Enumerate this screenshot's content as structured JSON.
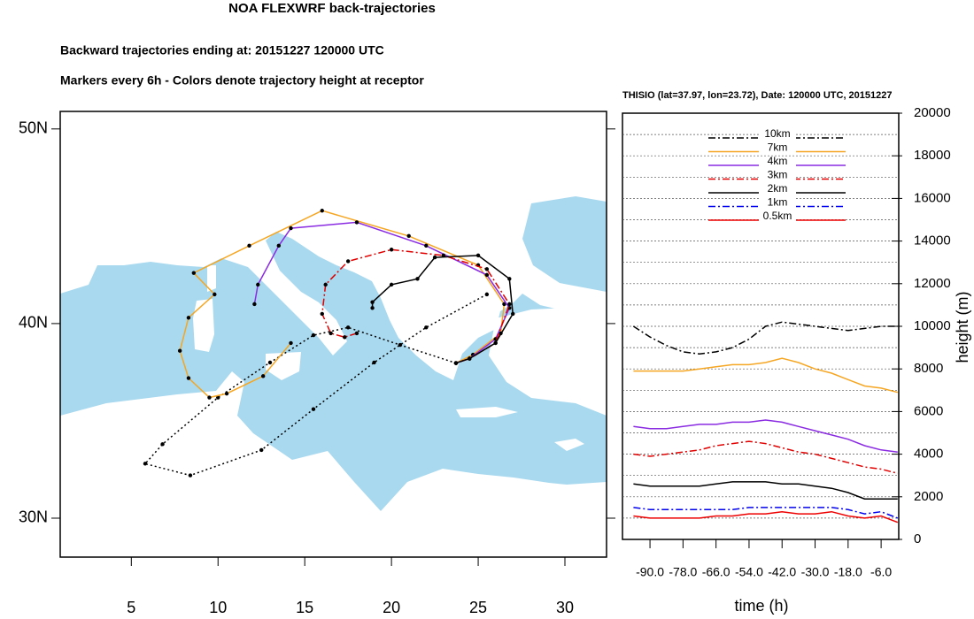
{
  "title": "NOA FLEXWRF back-trajectories",
  "subtitle": "Backward trajectories ending at: 20151227  120000 UTC",
  "note": "Markers every 6h - Colors denote trajectory height at receptor",
  "chart_data": [
    {
      "type": "trajectory-map",
      "xlim": [
        0.9,
        32.4
      ],
      "ylim": [
        28.0,
        50.9
      ],
      "xticks": [
        5,
        10,
        15,
        20,
        25,
        30
      ],
      "yticks": [
        {
          "value": 30,
          "label": "30N"
        },
        {
          "value": 40,
          "label": "40N"
        },
        {
          "value": 50,
          "label": "50N"
        }
      ],
      "series": [
        {
          "color": "#000000",
          "dash": "dotted",
          "x": [
            25.5,
            22.0,
            19.0,
            15.5,
            12.5,
            8.4,
            5.8,
            6.8,
            10.0,
            13.0,
            15.5,
            17.5,
            20.5,
            23.72
          ],
          "y": [
            41.5,
            39.8,
            38.0,
            35.6,
            33.5,
            32.2,
            32.8,
            33.8,
            36.2,
            38.0,
            39.4,
            39.8,
            38.9,
            37.97
          ]
        },
        {
          "color": "#f5a623",
          "dash": "solid",
          "x": [
            14.2,
            12.6,
            10.5,
            9.5,
            8.3,
            7.8,
            8.3,
            9.8,
            8.6,
            11.8,
            16.0,
            21.0,
            25.0,
            26.5,
            26.3,
            24.7,
            23.72
          ],
          "y": [
            39.0,
            37.3,
            36.4,
            36.2,
            37.2,
            38.6,
            40.3,
            41.5,
            42.6,
            44.0,
            45.8,
            44.5,
            43.0,
            41.0,
            39.5,
            38.4,
            37.97
          ]
        },
        {
          "color": "#8a2be2",
          "dash": "solid",
          "x": [
            12.1,
            12.3,
            13.5,
            14.2,
            18.0,
            22.0,
            25.5,
            26.8,
            26.0,
            24.5,
            23.72
          ],
          "y": [
            41.0,
            42.0,
            44.0,
            44.9,
            45.2,
            44.0,
            42.5,
            40.8,
            39.2,
            38.2,
            37.97
          ]
        },
        {
          "color": "#e00000",
          "dash": "dashdot",
          "x": [
            18.0,
            17.3,
            16.5,
            16.0,
            16.2,
            17.5,
            20.0,
            23.0,
            25.5,
            26.8,
            26.0,
            24.5,
            23.72
          ],
          "y": [
            39.5,
            39.3,
            39.5,
            40.5,
            42.0,
            43.2,
            43.8,
            43.5,
            42.8,
            41.0,
            39.0,
            38.2,
            37.97
          ]
        },
        {
          "color": "#000000",
          "dash": "solid",
          "x": [
            18.9,
            18.9,
            20.0,
            21.5,
            22.5,
            25.0,
            26.8,
            27.0,
            26.0,
            24.5,
            23.72
          ],
          "y": [
            40.8,
            41.1,
            42.0,
            42.3,
            43.4,
            43.5,
            42.3,
            40.5,
            39.0,
            38.2,
            37.97
          ]
        }
      ]
    },
    {
      "type": "line",
      "title": "THISIO (lat=37.97,  lon=23.72), Date: 120000 UTC, 20151227",
      "x_label": "time (h)",
      "y_label": "height (m)",
      "x": [
        -96,
        -90,
        -84,
        -78,
        -72,
        -66,
        -60,
        -54,
        -48,
        -42,
        -36,
        -30,
        -24,
        -18,
        -12,
        -6,
        0
      ],
      "xlim": [
        -100,
        0.4
      ],
      "ylim": [
        0,
        20000
      ],
      "xticks": [
        {
          "value": -90,
          "label": "-90.0"
        },
        {
          "value": -78,
          "label": "-78.0"
        },
        {
          "value": -66,
          "label": "-66.0"
        },
        {
          "value": -54,
          "label": "-54.0"
        },
        {
          "value": -42,
          "label": "-42.0"
        },
        {
          "value": -30,
          "label": "-30.0"
        },
        {
          "value": -18,
          "label": "-18.0"
        },
        {
          "value": -6,
          "label": "-6.0"
        }
      ],
      "yticks": [
        0,
        2000,
        4000,
        6000,
        8000,
        10000,
        12000,
        14000,
        16000,
        18000,
        20000
      ],
      "minor_yticks": [
        1000,
        3000,
        5000,
        7000,
        9000,
        11000,
        13000,
        15000,
        17000,
        19000
      ],
      "grid": true,
      "series": [
        {
          "name": "10km",
          "color": "#000000",
          "dash": "dashdot",
          "values": [
            10000,
            9500,
            9100,
            8800,
            8700,
            8800,
            9000,
            9400,
            10000,
            10200,
            10100,
            10000,
            9900,
            9800,
            9900,
            10000,
            10000
          ]
        },
        {
          "name": "7km",
          "color": "#f5a623",
          "dash": "solid",
          "values": [
            7900,
            7900,
            7900,
            7900,
            8000,
            8100,
            8200,
            8200,
            8300,
            8500,
            8300,
            8000,
            7800,
            7500,
            7200,
            7100,
            6900
          ]
        },
        {
          "name": "4km",
          "color": "#8a2be2",
          "dash": "solid",
          "values": [
            5300,
            5200,
            5200,
            5300,
            5400,
            5400,
            5500,
            5500,
            5600,
            5500,
            5300,
            5100,
            4900,
            4700,
            4400,
            4200,
            4100
          ]
        },
        {
          "name": "3km",
          "color": "#e00000",
          "dash": "dashdot",
          "values": [
            4000,
            3900,
            4000,
            4100,
            4200,
            4400,
            4500,
            4600,
            4500,
            4300,
            4100,
            4000,
            3800,
            3600,
            3400,
            3300,
            3100
          ]
        },
        {
          "name": "2km",
          "color": "#000000",
          "dash": "solid",
          "values": [
            2600,
            2500,
            2500,
            2500,
            2500,
            2600,
            2700,
            2700,
            2700,
            2600,
            2600,
            2500,
            2400,
            2200,
            1900,
            1900,
            1900
          ]
        },
        {
          "name": "1km",
          "color": "#0000ee",
          "dash": "dashdot",
          "values": [
            1500,
            1400,
            1400,
            1400,
            1400,
            1400,
            1400,
            1500,
            1500,
            1500,
            1500,
            1500,
            1500,
            1400,
            1200,
            1300,
            1000
          ]
        },
        {
          "name": "0.5km",
          "color": "#ee0000",
          "dash": "solid",
          "values": [
            1100,
            1000,
            1000,
            1000,
            1000,
            1100,
            1100,
            1200,
            1200,
            1300,
            1200,
            1200,
            1300,
            1100,
            1000,
            1100,
            800
          ]
        }
      ]
    }
  ]
}
